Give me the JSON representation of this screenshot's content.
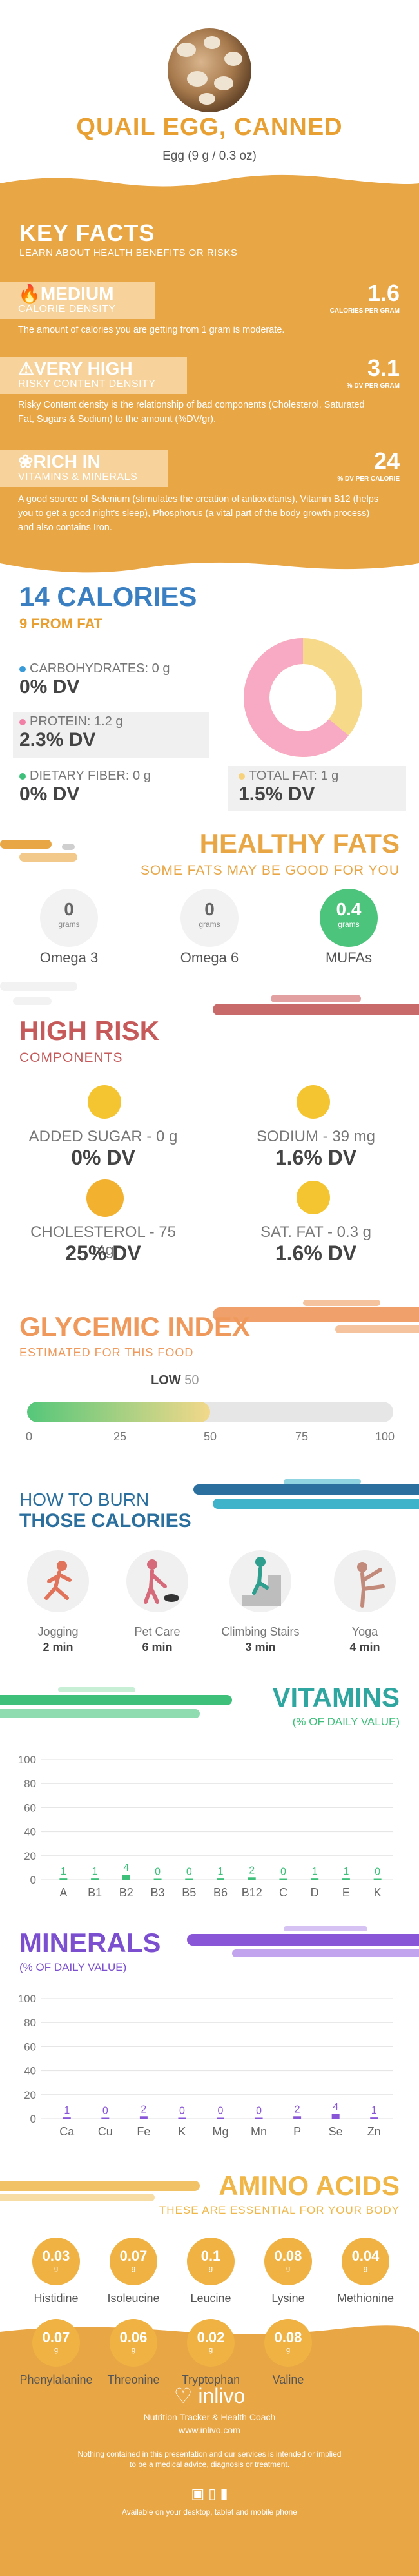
{
  "header": {
    "title": "QUAIL EGG, CANNED",
    "serving": "Egg (9 g / 0.3 oz)"
  },
  "key_facts": {
    "title": "KEY FACTS",
    "subtitle": "LEARN ABOUT HEALTH BENEFITS OR RISKS",
    "items": [
      {
        "level": "MEDIUM",
        "label": "CALORIE DENSITY",
        "value": "1.6",
        "unit": "CALORIES PER GRAM",
        "desc": "The amount of calories you are getting from 1 gram is moderate."
      },
      {
        "level": "VERY HIGH",
        "label": "RISKY CONTENT DENSITY",
        "value": "3.1",
        "unit": "% DV PER GRAM",
        "desc": "Risky Content density is the relationship of bad components (Cholesterol, Saturated Fat, Sugars & Sodium) to the amount (%DV/gr)."
      },
      {
        "level": "RICH IN",
        "label": "VITAMINS & MINERALS",
        "value": "24",
        "unit": "% DV PER CALORIE",
        "desc": "A good source of Selenium (stimulates the creation of antioxidants), Vitamin B12 (helps you to get a good night's sleep), Phosphorus (a vital part of the body growth process) and also contains Iron."
      }
    ]
  },
  "calories": {
    "title": "14 CALORIES",
    "subtitle": "9 FROM FAT",
    "nutrients": [
      {
        "label": "CARBOHYDRATES: 0 g",
        "dv": "0% DV",
        "color": "#3a9bd9"
      },
      {
        "label": "PROTEIN: 1.2 g",
        "dv": "2.3% DV",
        "color": "#f27fa6"
      },
      {
        "label": "DIETARY FIBER: 0 g",
        "dv": "0% DV",
        "color": "#3ec07a"
      },
      {
        "label": "TOTAL FAT: 1 g",
        "dv": "1.5% DV",
        "color": "#f7d27a"
      }
    ],
    "donut": {
      "protein_fraction": 0.64,
      "fat_fraction": 0.36,
      "protein_color": "#f8a9c4",
      "fat_color": "#f7d98a"
    }
  },
  "healthy_fats": {
    "title": "HEALTHY FATS",
    "subtitle": "SOME FATS MAY BE GOOD FOR YOU",
    "items": [
      {
        "value": "0",
        "unit": "grams",
        "name": "Omega 3"
      },
      {
        "value": "0",
        "unit": "grams",
        "name": "Omega 6"
      },
      {
        "value": "0.4",
        "unit": "grams",
        "name": "MUFAs"
      }
    ]
  },
  "high_risk": {
    "title": "HIGH RISK",
    "subtitle": "COMPONENTS",
    "items": [
      {
        "label": "ADDED SUGAR - 0 g",
        "dv": "0% DV"
      },
      {
        "label": "SODIUM - 39 mg",
        "dv": "1.6% DV"
      },
      {
        "label": "CHOLESTEROL - 75 mg",
        "dv": "25% DV"
      },
      {
        "label": "SAT. FAT - 0.3 g",
        "dv": "1.6% DV"
      }
    ]
  },
  "glycemic": {
    "title": "GLYCEMIC INDEX",
    "subtitle": "ESTIMATED FOR THIS FOOD",
    "level": "LOW",
    "value": "50",
    "value_num": 50,
    "ticks": [
      "0",
      "25",
      "50",
      "75",
      "100"
    ]
  },
  "burn": {
    "title1": "HOW TO BURN",
    "title2": "THOSE CALORIES",
    "activities": [
      {
        "name": "Jogging",
        "time": "2 min"
      },
      {
        "name": "Pet Care",
        "time": "6 min"
      },
      {
        "name": "Climbing Stairs",
        "time": "3 min"
      },
      {
        "name": "Yoga",
        "time": "4 min"
      }
    ]
  },
  "vitamins": {
    "title": "VITAMINS",
    "subtitle": "(% OF DAILY VALUE)",
    "y_ticks": [
      "100",
      "80",
      "60",
      "40",
      "20",
      "0"
    ],
    "labels": [
      "A",
      "B1",
      "B2",
      "B3",
      "B5",
      "B6",
      "B12",
      "C",
      "D",
      "E",
      "K"
    ],
    "values": [
      1,
      1,
      4,
      0,
      0,
      1,
      2,
      0,
      1,
      1,
      0
    ],
    "value_labels": [
      "1",
      "1",
      "4",
      "0",
      "0",
      "1",
      "2",
      "0",
      "1",
      "1",
      "0"
    ],
    "bar_color": "#3ec07a"
  },
  "minerals": {
    "title": "MINERALS",
    "subtitle": "(% OF DAILY VALUE)",
    "y_ticks": [
      "100",
      "80",
      "60",
      "40",
      "20",
      "0"
    ],
    "labels": [
      "Ca",
      "Cu",
      "Fe",
      "K",
      "Mg",
      "Mn",
      "P",
      "Se",
      "Zn"
    ],
    "values": [
      1,
      0,
      2,
      0,
      0,
      0,
      2,
      4,
      1
    ],
    "value_labels": [
      "1",
      "0",
      "2",
      "0",
      "0",
      "0",
      "2",
      "4",
      "1"
    ],
    "bar_color": "#8a56d8"
  },
  "amino": {
    "title": "AMINO ACIDS",
    "subtitle": "THESE ARE ESSENTIAL FOR YOUR BODY",
    "items": [
      {
        "value": "0.03",
        "unit": "g",
        "name": "Histidine"
      },
      {
        "value": "0.07",
        "unit": "g",
        "name": "Isoleucine"
      },
      {
        "value": "0.1",
        "unit": "g",
        "name": "Leucine"
      },
      {
        "value": "0.08",
        "unit": "g",
        "name": "Lysine"
      },
      {
        "value": "0.04",
        "unit": "g",
        "name": "Methionine"
      },
      {
        "value": "0.07",
        "unit": "g",
        "name": "Phenylalanine"
      },
      {
        "value": "0.06",
        "unit": "g",
        "name": "Threonine"
      },
      {
        "value": "0.02",
        "unit": "g",
        "name": "Tryptophan"
      },
      {
        "value": "0.08",
        "unit": "g",
        "name": "Valine"
      }
    ]
  },
  "footer": {
    "brand": "inlivo",
    "tagline": "Nutrition Tracker & Health Coach",
    "url": "www.inlivo.com",
    "disclaimer1": "Nothing contained in this presentation and our services is intended or implied",
    "disclaimer2": "to be a medical advice, diagnosis or treatment.",
    "available": "Available on your desktop, tablet and mobile phone"
  }
}
